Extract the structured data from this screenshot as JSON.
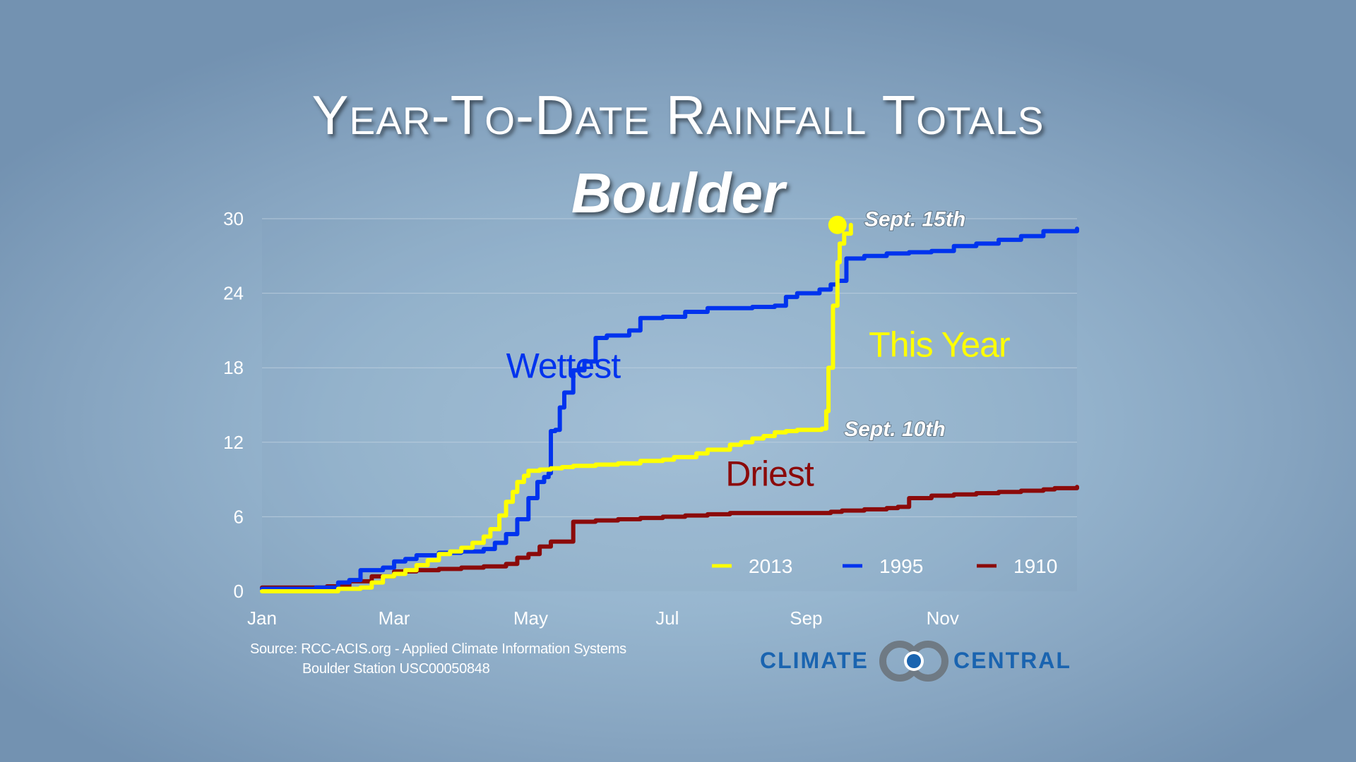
{
  "title": "Year-To-Date Rainfall Totals",
  "subtitle": "Boulder",
  "source_line1": "Source: RCC-ACIS.org - Applied Climate Information Systems",
  "source_line2": "Boulder Station USC00050848",
  "logo": {
    "word1": "CLIMATE",
    "word2": "CENTRAL",
    "icon": "climate-central-rings-icon"
  },
  "colors": {
    "series_2013": "#ffff00",
    "series_1995": "#0033ee",
    "series_1910": "#8b0a0a",
    "logo_blue": "#1a64b0",
    "logo_gray": "#6f7a84",
    "grid": "#c3d3e1"
  },
  "chart_data": {
    "type": "line",
    "title": "Year-To-Date Rainfall Totals",
    "subtitle": "Boulder",
    "xlabel": "",
    "ylabel": "",
    "x_units": "day of year",
    "xlim": [
      1,
      365
    ],
    "ylim": [
      0,
      30
    ],
    "yticks": [
      0,
      6,
      12,
      18,
      24,
      30
    ],
    "xticks": [
      {
        "label": "Jan",
        "x": 1
      },
      {
        "label": "Mar",
        "x": 60
      },
      {
        "label": "May",
        "x": 121
      },
      {
        "label": "Jul",
        "x": 182
      },
      {
        "label": "Sep",
        "x": 244
      },
      {
        "label": "Nov",
        "x": 305
      }
    ],
    "grid": "horizontal",
    "legend": "bottom-right",
    "series": [
      {
        "name": "2013",
        "color": "#ffff00",
        "x": [
          1,
          25,
          35,
          45,
          50,
          55,
          60,
          65,
          70,
          75,
          80,
          85,
          90,
          95,
          100,
          103,
          107,
          110,
          113,
          115,
          118,
          120,
          125,
          130,
          135,
          140,
          150,
          160,
          170,
          180,
          185,
          195,
          200,
          210,
          215,
          220,
          225,
          230,
          235,
          240,
          245,
          250,
          251,
          253,
          254,
          256,
          258,
          259,
          261,
          264
        ],
        "y": [
          0,
          0,
          0.2,
          0.3,
          0.7,
          1.2,
          1.4,
          1.7,
          2.1,
          2.5,
          3.0,
          3.2,
          3.5,
          3.9,
          4.4,
          5.0,
          6.1,
          7.2,
          8.0,
          8.8,
          9.3,
          9.7,
          9.8,
          9.9,
          10.0,
          10.1,
          10.2,
          10.3,
          10.5,
          10.6,
          10.8,
          11.1,
          11.4,
          11.8,
          12.0,
          12.3,
          12.5,
          12.8,
          12.9,
          13.0,
          13.0,
          13.0,
          13.1,
          14.5,
          18.0,
          23.0,
          26.5,
          28.0,
          28.8,
          29.5
        ]
      },
      {
        "name": "1995",
        "color": "#0033ee",
        "x": [
          1,
          25,
          35,
          40,
          45,
          55,
          60,
          65,
          70,
          80,
          90,
          100,
          105,
          110,
          115,
          120,
          124,
          127,
          129,
          130,
          132,
          134,
          136,
          140,
          145,
          150,
          155,
          165,
          170,
          180,
          190,
          200,
          210,
          220,
          230,
          235,
          240,
          250,
          255,
          258,
          262,
          270,
          280,
          290,
          300,
          310,
          320,
          330,
          340,
          350,
          365
        ],
        "y": [
          0.2,
          0.3,
          0.7,
          0.9,
          1.7,
          1.9,
          2.4,
          2.6,
          2.9,
          3.1,
          3.2,
          3.4,
          3.9,
          4.6,
          5.8,
          7.5,
          8.8,
          9.2,
          9.5,
          12.9,
          13.0,
          14.8,
          16.0,
          17.8,
          18.5,
          20.4,
          20.6,
          21.0,
          22.0,
          22.1,
          22.5,
          22.8,
          22.8,
          22.9,
          23.0,
          23.7,
          24.0,
          24.3,
          24.7,
          25.0,
          26.8,
          27.0,
          27.2,
          27.3,
          27.4,
          27.8,
          28.0,
          28.3,
          28.6,
          29.0,
          29.2
        ]
      },
      {
        "name": "1910",
        "color": "#8b0a0a",
        "x": [
          1,
          30,
          40,
          50,
          60,
          70,
          80,
          90,
          100,
          110,
          115,
          120,
          125,
          130,
          140,
          150,
          160,
          170,
          180,
          190,
          200,
          210,
          220,
          230,
          240,
          250,
          255,
          260,
          270,
          280,
          285,
          290,
          300,
          310,
          320,
          330,
          340,
          350,
          355,
          365
        ],
        "y": [
          0.3,
          0.4,
          0.8,
          1.2,
          1.6,
          1.7,
          1.8,
          1.9,
          2.0,
          2.2,
          2.7,
          3.0,
          3.6,
          4.0,
          5.6,
          5.7,
          5.8,
          5.9,
          6.0,
          6.1,
          6.2,
          6.3,
          6.3,
          6.3,
          6.3,
          6.3,
          6.4,
          6.5,
          6.6,
          6.7,
          6.8,
          7.5,
          7.7,
          7.8,
          7.9,
          8.0,
          8.1,
          8.2,
          8.3,
          8.4
        ]
      }
    ],
    "annotations": [
      {
        "text": "Wettest",
        "x": 110,
        "y": 17.2,
        "color": "#0033ee",
        "style": "series-label"
      },
      {
        "text": "This Year",
        "x": 272,
        "y": 18.9,
        "color": "#ffff00",
        "style": "series-label"
      },
      {
        "text": "Driest",
        "x": 208,
        "y": 8.5,
        "color": "#8b0a0a",
        "style": "series-label"
      },
      {
        "text": "Sept. 15th",
        "x": 270,
        "y": 29.4,
        "color": "#ffffff",
        "style": "callout"
      },
      {
        "text": "Sept. 10th",
        "x": 261,
        "y": 12.5,
        "color": "#ffffff",
        "style": "callout"
      }
    ],
    "marker": {
      "x": 258,
      "y": 29.5,
      "color": "#ffff00"
    }
  }
}
